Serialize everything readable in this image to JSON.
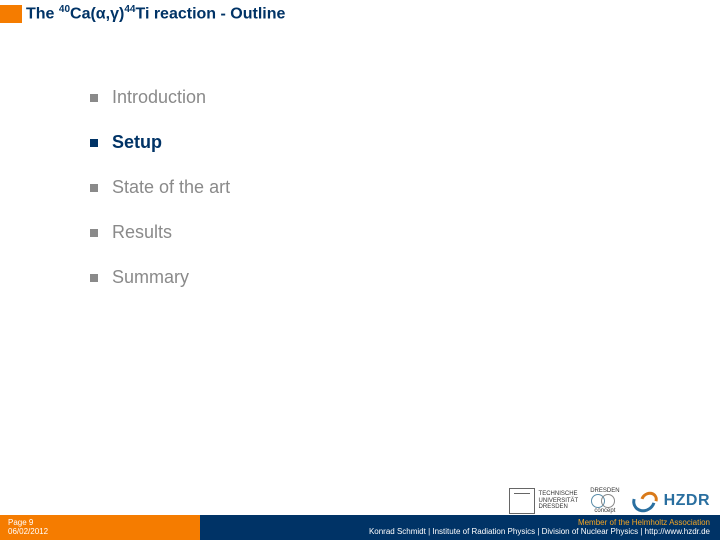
{
  "title": {
    "parts": [
      "The ",
      "40",
      "Ca(",
      "α",
      ",",
      "γ",
      ")",
      "44",
      "Ti reaction - Outline"
    ]
  },
  "outline": {
    "items": [
      {
        "label": "Introduction",
        "active": false
      },
      {
        "label": "Setup",
        "active": true
      },
      {
        "label": "State of the art",
        "active": false
      },
      {
        "label": "Results",
        "active": false
      },
      {
        "label": "Summary",
        "active": false
      }
    ]
  },
  "logos": {
    "tu": {
      "line1": "TECHNISCHE",
      "line2": "UNIVERSITÄT",
      "line3": "DRESDEN"
    },
    "dresden": {
      "top": "DRESDEN",
      "bottom": "concept"
    },
    "hzdr": {
      "text": "HZDR"
    }
  },
  "footer": {
    "page": "Page 9",
    "date": "06/02/2012",
    "member": "Member of the Helmholtz Association",
    "author": "Konrad Schmidt | Institute of Radiation Physics | Division of Nuclear Physics | http://www.hzdr.de"
  },
  "colors": {
    "accent_orange": "#f57c00",
    "accent_blue": "#003366",
    "muted": "#8a8a8a"
  }
}
